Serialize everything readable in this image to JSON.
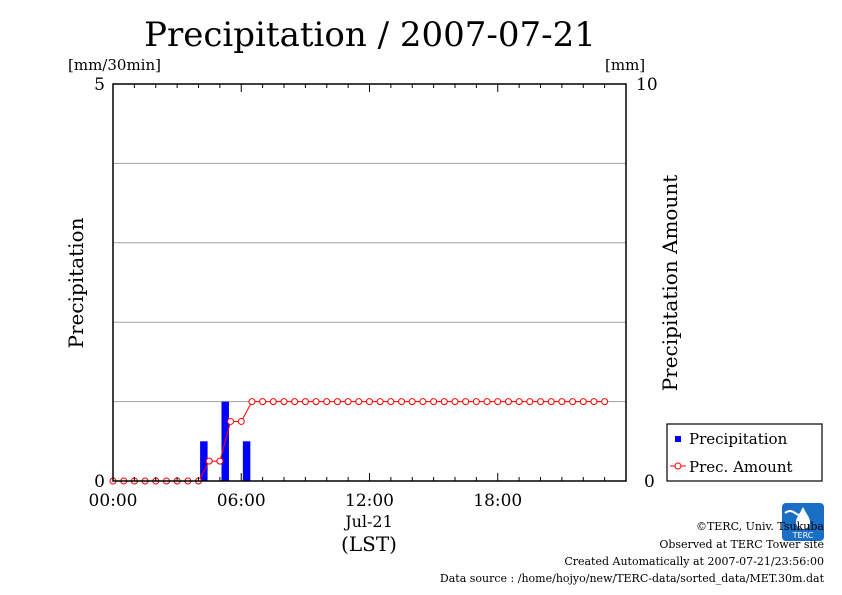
{
  "chart_data": {
    "type": "bar+line",
    "title": "Precipitation / 2007-07-21",
    "y_left": {
      "label": "Precipitation",
      "unit": "[mm/30min]",
      "range": [
        0,
        5
      ],
      "ticks": [
        "0",
        "5"
      ]
    },
    "y_right": {
      "label": "Precipitation Amount",
      "unit": "[mm]",
      "range": [
        0,
        10
      ],
      "ticks": [
        "0",
        "10"
      ]
    },
    "x": {
      "range_hours": [
        0,
        24
      ],
      "tick_hours": [
        0,
        6,
        12,
        18
      ],
      "tick_labels": [
        "00:00",
        "06:00",
        "12:00",
        "18:00"
      ],
      "date_label": "Jul-21",
      "axis_label": "(LST)"
    },
    "grid": {
      "horizontal": true,
      "levels": [
        1,
        2,
        3,
        4
      ]
    },
    "legend": {
      "position": "bottom-right",
      "entries": [
        {
          "label": "Precipitation",
          "color": "#0000ff",
          "marker": "square"
        },
        {
          "label": "Prec. Amount",
          "color": "#ff0000",
          "marker": "open-circle"
        }
      ]
    },
    "series": [
      {
        "name": "Precipitation",
        "kind": "bar",
        "color": "#0000ff",
        "x": [
          4.0,
          5.0,
          6.0
        ],
        "values": [
          0.5,
          1.0,
          0.5
        ]
      },
      {
        "name": "Prec. Amount",
        "kind": "line",
        "color": "#ff0000",
        "x": [
          0.0,
          0.5,
          1.0,
          1.5,
          2.0,
          2.5,
          3.0,
          3.5,
          4.0,
          4.5,
          5.0,
          5.5,
          6.0,
          6.5,
          7.0,
          7.5,
          8.0,
          8.5,
          9.0,
          9.5,
          10.0,
          10.5,
          11.0,
          11.5,
          12.0,
          12.5,
          13.0,
          13.5,
          14.0,
          14.5,
          15.0,
          15.5,
          16.0,
          16.5,
          17.0,
          17.5,
          18.0,
          18.5,
          19.0,
          19.5,
          20.0,
          20.5,
          21.0,
          21.5,
          22.0,
          22.5,
          23.0
        ],
        "values": [
          0,
          0,
          0,
          0,
          0,
          0,
          0,
          0,
          0,
          0.5,
          0.5,
          1.5,
          1.5,
          2,
          2,
          2,
          2,
          2,
          2,
          2,
          2,
          2,
          2,
          2,
          2,
          2,
          2,
          2,
          2,
          2,
          2,
          2,
          2,
          2,
          2,
          2,
          2,
          2,
          2,
          2,
          2,
          2,
          2,
          2,
          2,
          2,
          2
        ]
      }
    ]
  },
  "footer": {
    "copyright": "©TERC, Univ. Tsukuba",
    "site": "Observed at TERC Tower site",
    "created": "Created Automatically at 2007-07-21/23:56:00",
    "source": "Data source : /home/hojyo/new/TERC-data/sorted_data/MET.30m.dat"
  },
  "logo": {
    "text": "TERC",
    "color": "#1a6fc4"
  }
}
